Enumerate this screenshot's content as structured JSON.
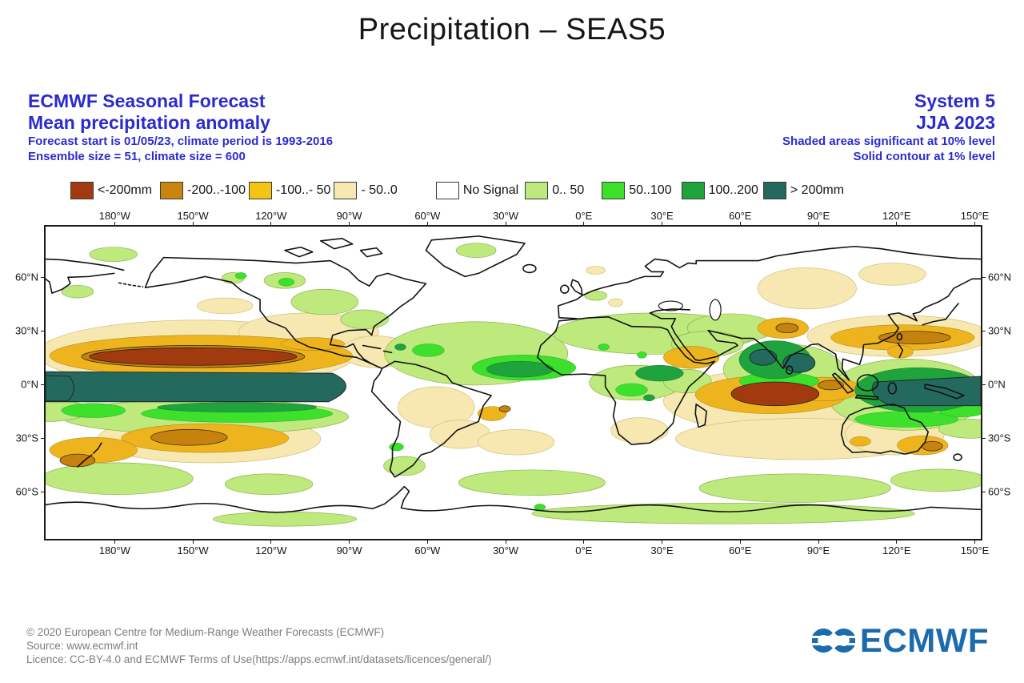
{
  "title": "Precipitation – SEAS5",
  "header_left": {
    "line1": "ECMWF Seasonal Forecast",
    "line2": "Mean precipitation anomaly",
    "line3": "Forecast start is 01/05/23, climate period is 1993-2016",
    "line4": "Ensemble size = 51, climate size = 600"
  },
  "header_right": {
    "line1": "System 5",
    "line2": "JJA 2023",
    "line3": "Shaded areas significant at 10% level",
    "line4": "Solid contour at 1% level"
  },
  "legend": {
    "items": [
      {
        "label": "<-200mm",
        "color": "#A23A10"
      },
      {
        "label": "-200..-100",
        "color": "#C8860E"
      },
      {
        "label": "-100..- 50",
        "color": "#F2C413"
      },
      {
        "label": "- 50..0",
        "color": "#F6E8B0"
      },
      {
        "label": "No Signal",
        "color": "#FFFFFF"
      },
      {
        "label": "0.. 50",
        "color": "#BDE97D"
      },
      {
        "label": "50..100",
        "color": "#3DE02A"
      },
      {
        "label": "100..200",
        "color": "#1FA33C"
      },
      {
        "label": "> 200mm",
        "color": "#23695D"
      }
    ]
  },
  "map": {
    "lon_ticks": [
      "180°W",
      "150°W",
      "120°W",
      "90°W",
      "60°W",
      "30°W",
      "0°E",
      "30°E",
      "60°E",
      "90°E",
      "120°E",
      "150°E"
    ],
    "lat_ticks": [
      "60°N",
      "30°N",
      "0°N",
      "30°S",
      "60°S"
    ]
  },
  "footer": {
    "line1": "© 2020 European Centre for Medium-Range Weather Forecasts (ECMWF)",
    "line2": "Source: www.ecmwf.int",
    "line3": "Licence: CC-BY-4.0 and ECMWF Terms of Use(https://apps.ecmwf.int/datasets/licences/general/)"
  },
  "logo": {
    "text": "ECMWF",
    "color": "#1B6BAD"
  },
  "colors": {
    "header_blue": "#2B2BCE",
    "footer_gray": "#7c7c7c",
    "map_border": "#1a1a1a"
  },
  "chart_data": {
    "type": "heatmap",
    "subtype": "filled-contour world map (equirectangular, 180°W–180°E, ~88°N–88°S)",
    "title": "Precipitation – SEAS5",
    "variable": "Mean precipitation anomaly",
    "units": "mm",
    "model_system": "System 5 (SEAS5)",
    "season": "JJA 2023",
    "forecast_start": "01/05/23",
    "climate_period": "1993-2016",
    "ensemble_size": 51,
    "climate_size": 600,
    "significance_note": "Shaded areas significant at 10% level; solid contour at 1% level",
    "legend_position": "top, horizontal row above map",
    "grid": false,
    "x_axis": {
      "label": "longitude",
      "ticks": [
        "180°W",
        "150°W",
        "120°W",
        "90°W",
        "60°W",
        "30°W",
        "0°E",
        "30°E",
        "60°E",
        "90°E",
        "120°E",
        "150°E"
      ]
    },
    "y_axis": {
      "label": "latitude",
      "ticks": [
        "60°N",
        "30°N",
        "0°N",
        "30°S",
        "60°S"
      ]
    },
    "color_bins": [
      {
        "range_mm": "< -200",
        "color": "#A23A10"
      },
      {
        "range_mm": "-200 to -100",
        "color": "#C8860E"
      },
      {
        "range_mm": "-100 to -50",
        "color": "#F2C413"
      },
      {
        "range_mm": "-50 to 0",
        "color": "#F6E8B0"
      },
      {
        "range_mm": "no signal",
        "color": "#FFFFFF"
      },
      {
        "range_mm": "0 to 50",
        "color": "#BDE97D"
      },
      {
        "range_mm": "50 to 100",
        "color": "#3DE02A"
      },
      {
        "range_mm": "100 to 200",
        "color": "#1FA33C"
      },
      {
        "range_mm": "> 200",
        "color": "#23695D"
      }
    ],
    "notable_anomalies": [
      {
        "region": "Equatorial central/eastern Pacific (180°W–80°W, ~0–5°N)",
        "anomaly_mm": "> 200 (strong wet band, El Niño signature)"
      },
      {
        "region": "North of the Pacific wet band, ITCZ ~5–15°N (180°W–90°W)",
        "anomaly_mm": "< -200 (strong dry band)"
      },
      {
        "region": "Western equatorial Pacific (150°E–180°, near equator)",
        "anomaly_mm": "> 200 wet"
      },
      {
        "region": "NW subtropical Pacific (~20–30°N, 120°E–180°)",
        "anomaly_mm": "-200 to -50 dry"
      },
      {
        "region": "Equatorial Indian Ocean near 60°E–100°E (0–10°S)",
        "anomaly_mm": "< -200 dry core with -200..-50 halo"
      },
      {
        "region": "Indian west coast, Bay of Bengal, Himalayan foothills",
        "anomaly_mm": "100 to >200 wet"
      },
      {
        "region": "Maritime Continent and Australia",
        "anomaly_mm": "-100 to 0 dry"
      },
      {
        "region": "Subtropical South Pacific ~20–30°S (170°W–120°W)",
        "anomaly_mm": "-200 to -50 dry"
      },
      {
        "region": "North Africa / Mediterranean / Middle East",
        "anomaly_mm": "0 to 50 slightly wet"
      },
      {
        "region": "Tropical Atlantic ITCZ and Caribbean",
        "anomaly_mm": "0 to 100 wet patches"
      },
      {
        "region": "Southern Ocean ~50–65°S",
        "anomaly_mm": "0 to 50 patchy wet"
      }
    ]
  }
}
